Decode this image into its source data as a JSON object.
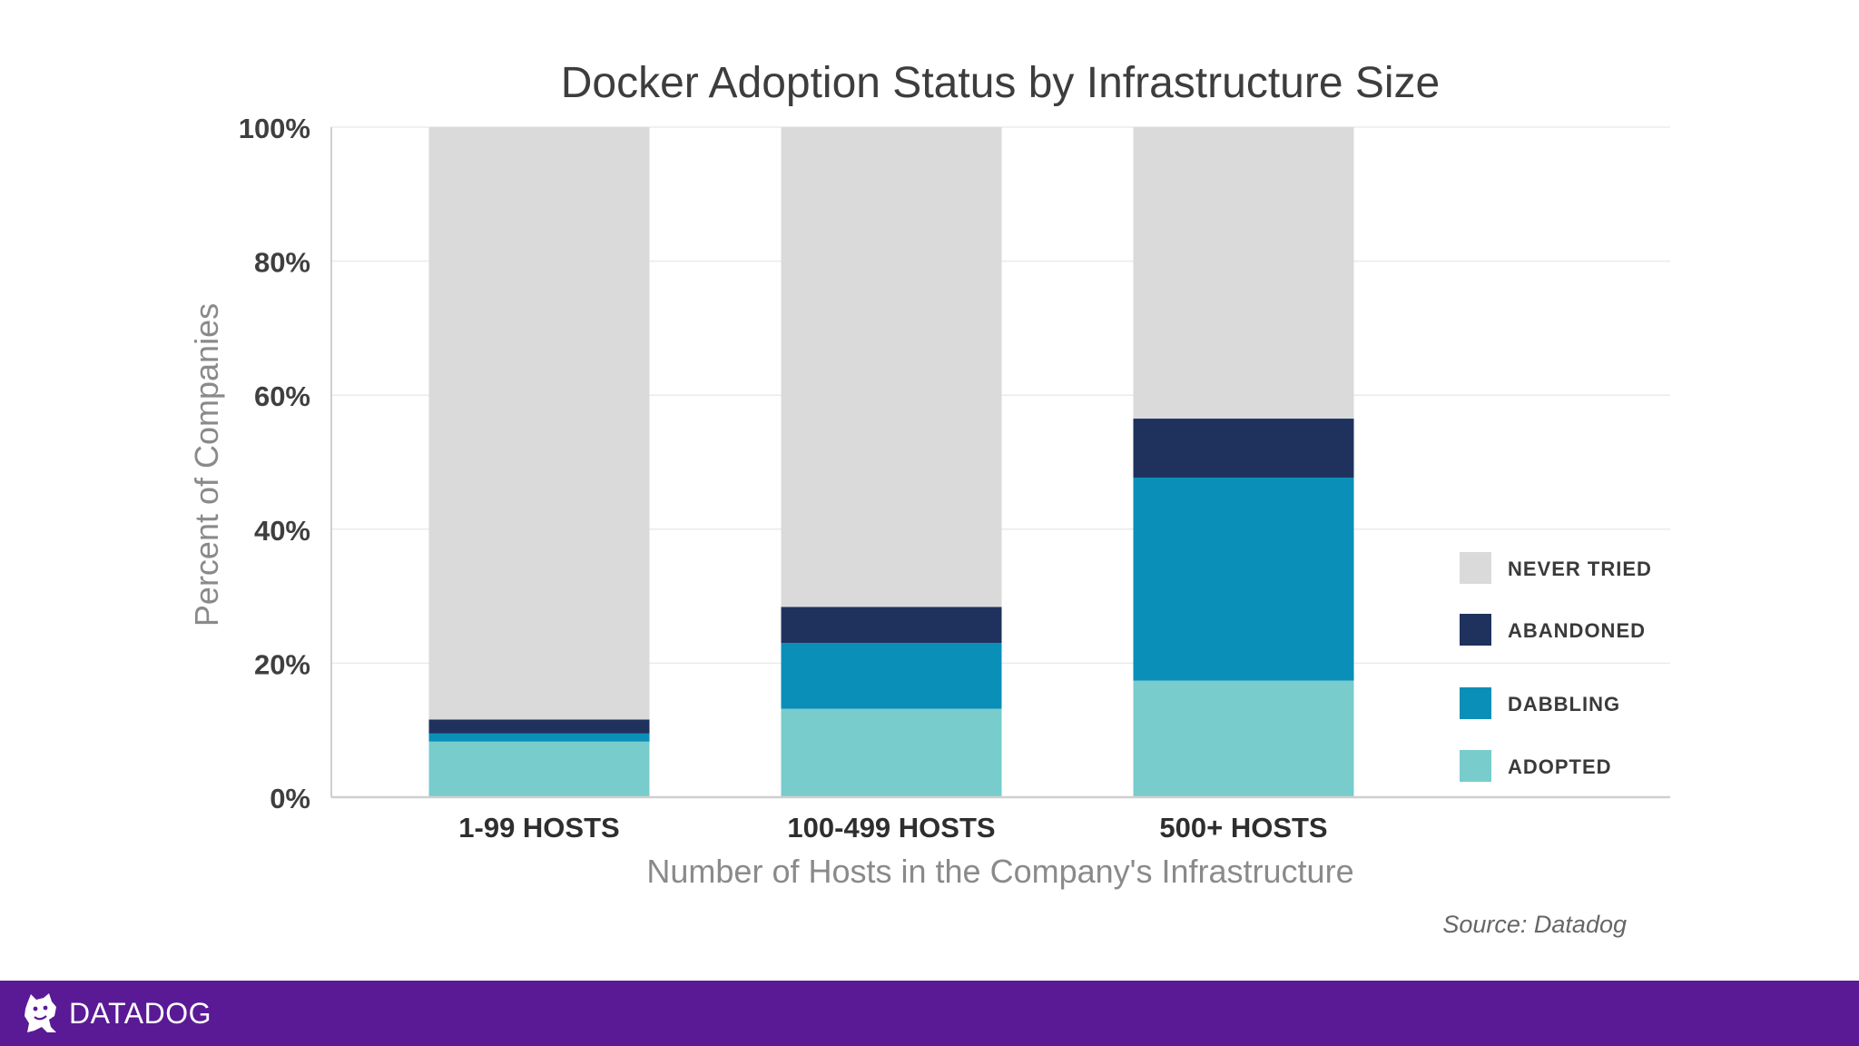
{
  "chart_data": {
    "type": "bar",
    "stacked": true,
    "title": "Docker Adoption Status by Infrastructure Size",
    "xlabel": "Number of Hosts in the Company's Infrastructure",
    "ylabel": "Percent of Companies",
    "ylim": [
      0,
      100
    ],
    "yticks": [
      0,
      20,
      40,
      60,
      80,
      100
    ],
    "ytick_suffix": "%",
    "grid": true,
    "legend_position": "right",
    "categories": [
      "1-99 HOSTS",
      "100-499 HOSTS",
      "500+ HOSTS"
    ],
    "series": [
      {
        "name": "ADOPTED",
        "color": "#78cccc",
        "values": [
          8.3,
          13.2,
          17.4
        ]
      },
      {
        "name": "DABBLING",
        "color": "#0a8fb8",
        "values": [
          1.2,
          9.8,
          30.3
        ]
      },
      {
        "name": "ABANDONED",
        "color": "#1f325e",
        "values": [
          2.1,
          5.4,
          8.8
        ]
      },
      {
        "name": "NEVER TRIED",
        "color": "#dadada",
        "values": [
          88.4,
          71.6,
          43.5
        ]
      }
    ],
    "legend_order": [
      "NEVER TRIED",
      "ABANDONED",
      "DABBLING",
      "ADOPTED"
    ]
  },
  "source": "Source: Datadog",
  "footer": {
    "brand": "DATADOG",
    "logo_icon": "datadog-dog-icon",
    "background_color": "#5a1a96"
  }
}
